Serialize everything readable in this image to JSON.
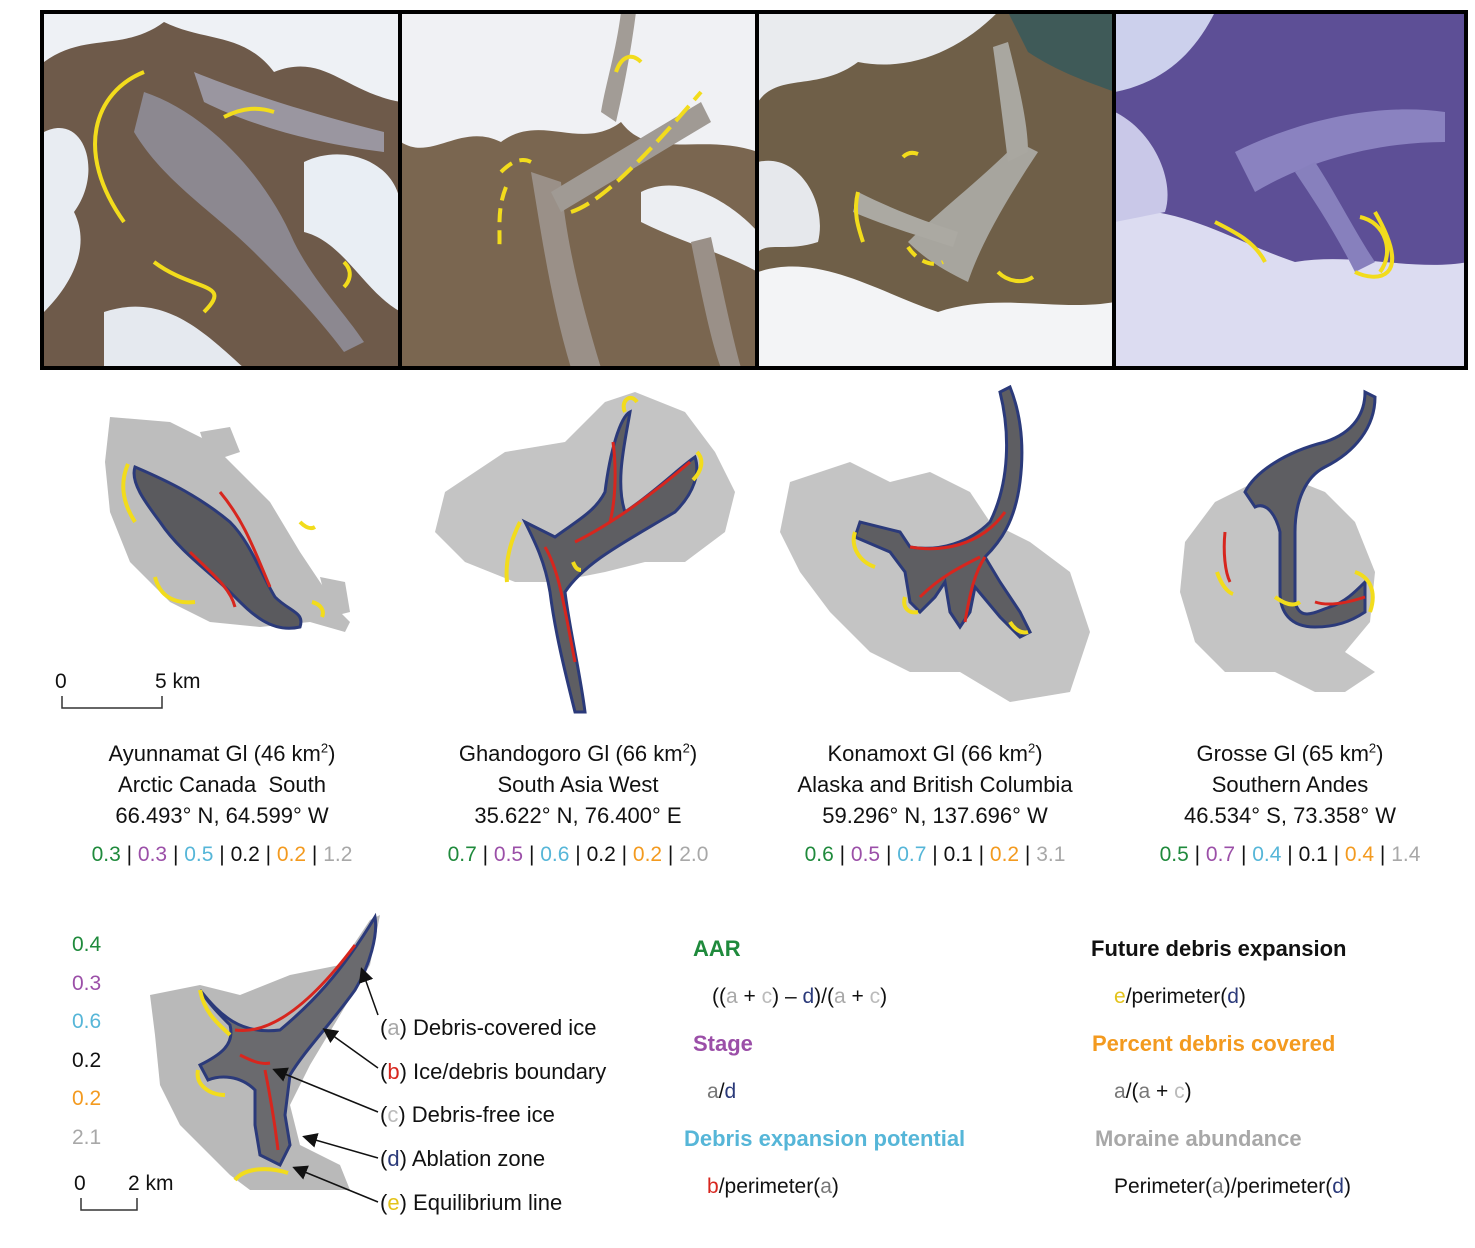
{
  "colors": {
    "aar": "#1f8a3c",
    "stage": "#9b4fa8",
    "expansion_potential": "#56b6d8",
    "future_expansion": "#111111",
    "percent_debris": "#f39a1f",
    "moraine": "#a8a8a8",
    "debris_boundary": "#d7261e",
    "ablation": "#2b3a7a",
    "equilibrium": "#e3c31b"
  },
  "glaciers": [
    {
      "name": "Ayunnamat Gl (46 km",
      "sup": "2",
      "close": ")",
      "region": "Arctic Canada  South",
      "coords": "66.493° N, 64.599° W",
      "metrics": [
        "0.3",
        "0.3",
        "0.5",
        "0.2",
        "0.2",
        "1.2"
      ]
    },
    {
      "name": "Ghandogoro Gl (66 km",
      "sup": "2",
      "close": ")",
      "region": "South Asia West",
      "coords": "35.622° N, 76.400° E",
      "metrics": [
        "0.7",
        "0.5",
        "0.6",
        "0.2",
        "0.2",
        "2.0"
      ]
    },
    {
      "name": "Konamoxt Gl (66 km",
      "sup": "2",
      "close": ")",
      "region": "Alaska and British Columbia",
      "coords": "59.296° N, 137.696° W",
      "metrics": [
        "0.6",
        "0.5",
        "0.7",
        "0.1",
        "0.2",
        "3.1"
      ]
    },
    {
      "name": "Grosse Gl (65 km",
      "sup": "2",
      "close": ")",
      "region": "Southern Andes",
      "coords": "46.534° S, 73.358° W",
      "metrics": [
        "0.5",
        "0.7",
        "0.4",
        "0.1",
        "0.4",
        "1.4"
      ]
    }
  ],
  "scale_top": {
    "zero": "0",
    "length": "5 km"
  },
  "scale_bottom": {
    "zero": "0",
    "length": "2 km"
  },
  "example_metrics": [
    "0.4",
    "0.3",
    "0.6",
    "0.2",
    "0.2",
    "2.1"
  ],
  "legend": [
    {
      "letter": "a",
      "label": "Debris-covered ice"
    },
    {
      "letter": "b",
      "label": "Ice/debris boundary"
    },
    {
      "letter": "c",
      "label": "Debris-free ice"
    },
    {
      "letter": "d",
      "label": "Ablation zone"
    },
    {
      "letter": "e",
      "label": "Equilibrium line"
    }
  ],
  "definitions": {
    "aar": {
      "title": "AAR"
    },
    "stage": {
      "title": "Stage"
    },
    "expansion_potential": {
      "title": "Debris expansion potential",
      "fn": "/perimeter("
    },
    "future_expansion": {
      "title": "Future debris expansion",
      "fn": "/perimeter("
    },
    "percent_debris": {
      "title": "Percent debris covered"
    },
    "moraine": {
      "title": "Moraine abundance",
      "fn1": "Perimeter(",
      "fn2": ")/perimeter("
    }
  }
}
